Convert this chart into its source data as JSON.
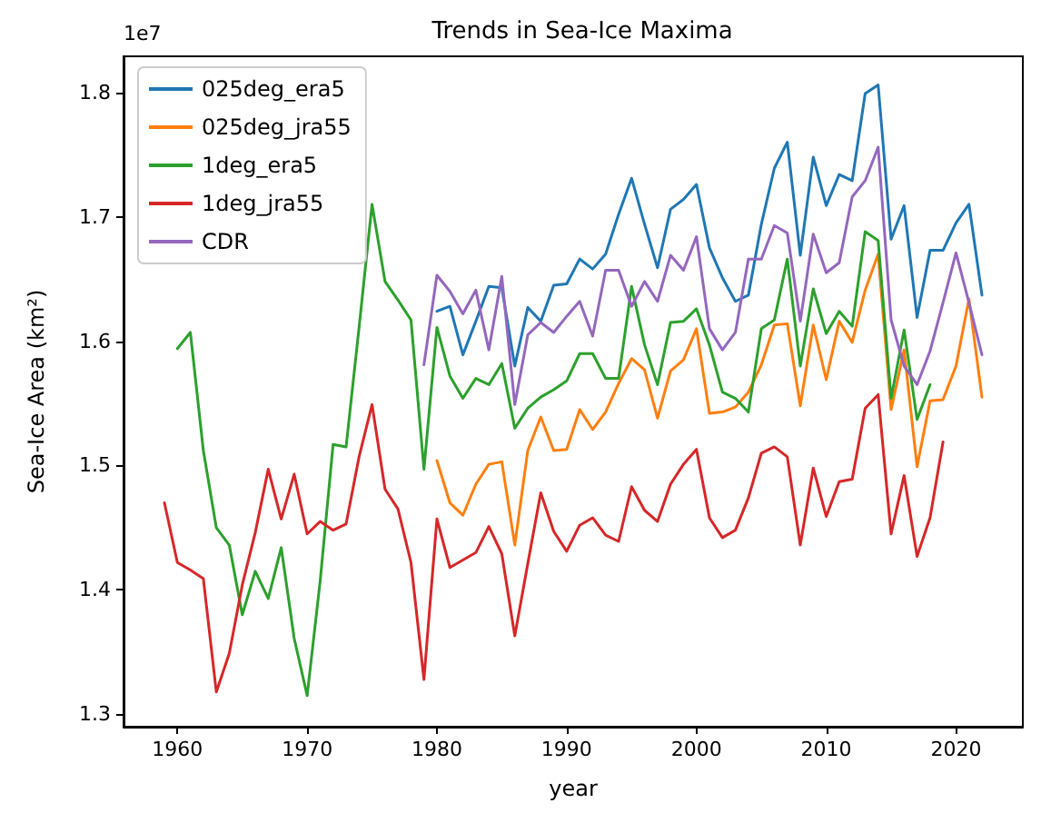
{
  "chart_data": {
    "type": "line",
    "title": "Trends in Sea-Ice Maxima",
    "xlabel": "year",
    "ylabel": "Sea-Ice Area (km²)",
    "annotations": [
      "1e7"
    ],
    "xlim": [
      1955.85,
      2025.15
    ],
    "xticks": [
      1960,
      1970,
      1980,
      1990,
      2000,
      2010,
      2020
    ],
    "ylim": [
      1.29,
      1.829
    ],
    "yticks": [
      1.3,
      1.4,
      1.5,
      1.6,
      1.7,
      1.8
    ],
    "grid": false,
    "legend": "top left",
    "marker": "none",
    "line_style": "solid",
    "series": [
      {
        "name": "025deg_era5",
        "color": "#1f77b4",
        "x": [
          1980,
          1981,
          1982,
          1983,
          1984,
          1985,
          1986,
          1987,
          1988,
          1989,
          1990,
          1991,
          1992,
          1993,
          1994,
          1995,
          1996,
          1997,
          1998,
          1999,
          2000,
          2001,
          2002,
          2003,
          2004,
          2005,
          2006,
          2007,
          2008,
          2009,
          2010,
          2011,
          2012,
          2013,
          2014,
          2015,
          2016,
          2017,
          2018,
          2019,
          2020,
          2021,
          2022
        ],
        "values": [
          1.624,
          1.628,
          1.589,
          1.616,
          1.644,
          1.643,
          1.58,
          1.627,
          1.616,
          1.645,
          1.646,
          1.666,
          1.658,
          1.67,
          1.702,
          1.731,
          1.694,
          1.659,
          1.706,
          1.714,
          1.726,
          1.675,
          1.651,
          1.632,
          1.637,
          1.694,
          1.739,
          1.76,
          1.669,
          1.748,
          1.709,
          1.734,
          1.729,
          1.799,
          1.806,
          1.682,
          1.709,
          1.619,
          1.673,
          1.673,
          1.695,
          1.71,
          1.637
        ]
      },
      {
        "name": "025deg_jra55",
        "color": "#ff7f0e",
        "x": [
          1980,
          1981,
          1982,
          1983,
          1984,
          1985,
          1986,
          1987,
          1988,
          1989,
          1990,
          1991,
          1992,
          1993,
          1994,
          1995,
          1996,
          1997,
          1998,
          1999,
          2000,
          2001,
          2002,
          2003,
          2004,
          2005,
          2006,
          2007,
          2008,
          2009,
          2010,
          2011,
          2012,
          2013,
          2014,
          2015,
          2016,
          2017,
          2018,
          2019,
          2020,
          2021,
          2022
        ],
        "values": [
          1.504,
          1.47,
          1.46,
          1.485,
          1.501,
          1.503,
          1.436,
          1.512,
          1.539,
          1.512,
          1.513,
          1.545,
          1.529,
          1.543,
          1.566,
          1.586,
          1.577,
          1.538,
          1.576,
          1.585,
          1.61,
          1.542,
          1.543,
          1.547,
          1.559,
          1.581,
          1.613,
          1.614,
          1.548,
          1.613,
          1.569,
          1.616,
          1.599,
          1.641,
          1.67,
          1.545,
          1.593,
          1.499,
          1.552,
          1.553,
          1.58,
          1.634,
          1.555
        ]
      },
      {
        "name": "1deg_era5",
        "color": "#2ca02c",
        "x": [
          1960,
          1961,
          1962,
          1963,
          1964,
          1965,
          1966,
          1967,
          1968,
          1969,
          1970,
          1971,
          1972,
          1973,
          1974,
          1975,
          1976,
          1977,
          1978,
          1979,
          1980,
          1981,
          1982,
          1983,
          1984,
          1985,
          1986,
          1987,
          1988,
          1989,
          1990,
          1991,
          1992,
          1993,
          1994,
          1995,
          1996,
          1997,
          1998,
          1999,
          2000,
          2001,
          2002,
          2003,
          2004,
          2005,
          2006,
          2007,
          2008,
          2009,
          2010,
          2011,
          2012,
          2013,
          2014,
          2015,
          2016,
          2017,
          2018
        ],
        "values": [
          1.594,
          1.607,
          1.512,
          1.45,
          1.436,
          1.38,
          1.415,
          1.393,
          1.434,
          1.361,
          1.315,
          1.407,
          1.517,
          1.515,
          1.611,
          1.71,
          1.648,
          1.633,
          1.617,
          1.497,
          1.611,
          1.572,
          1.554,
          1.57,
          1.565,
          1.582,
          1.53,
          1.546,
          1.555,
          1.561,
          1.568,
          1.59,
          1.59,
          1.57,
          1.57,
          1.644,
          1.597,
          1.565,
          1.615,
          1.616,
          1.626,
          1.597,
          1.559,
          1.554,
          1.543,
          1.61,
          1.617,
          1.666,
          1.58,
          1.642,
          1.606,
          1.624,
          1.612,
          1.688,
          1.681,
          1.554,
          1.609,
          1.537,
          1.565
        ]
      },
      {
        "name": "1deg_jra55",
        "color": "#d62728",
        "x": [
          1959,
          1960,
          1961,
          1962,
          1963,
          1964,
          1965,
          1966,
          1967,
          1968,
          1969,
          1970,
          1971,
          1972,
          1973,
          1974,
          1975,
          1976,
          1977,
          1978,
          1979,
          1980,
          1981,
          1982,
          1983,
          1984,
          1985,
          1986,
          1987,
          1988,
          1989,
          1990,
          1991,
          1992,
          1993,
          1994,
          1995,
          1996,
          1997,
          1998,
          1999,
          2000,
          2001,
          2002,
          2003,
          2004,
          2005,
          2006,
          2007,
          2008,
          2009,
          2010,
          2011,
          2012,
          2013,
          2014,
          2015,
          2016,
          2017,
          2018,
          2019
        ],
        "values": [
          1.47,
          1.422,
          1.416,
          1.409,
          1.318,
          1.349,
          1.404,
          1.446,
          1.497,
          1.457,
          1.493,
          1.445,
          1.455,
          1.448,
          1.453,
          1.507,
          1.549,
          1.481,
          1.465,
          1.422,
          1.328,
          1.457,
          1.418,
          1.424,
          1.43,
          1.451,
          1.429,
          1.363,
          1.421,
          1.478,
          1.447,
          1.431,
          1.452,
          1.458,
          1.444,
          1.439,
          1.483,
          1.464,
          1.455,
          1.485,
          1.501,
          1.513,
          1.458,
          1.442,
          1.448,
          1.474,
          1.51,
          1.515,
          1.507,
          1.436,
          1.498,
          1.459,
          1.487,
          1.489,
          1.546,
          1.557,
          1.445,
          1.492,
          1.427,
          1.458,
          1.519
        ]
      },
      {
        "name": "CDR",
        "color": "#9467bd",
        "x": [
          1979,
          1980,
          1981,
          1982,
          1983,
          1984,
          1985,
          1986,
          1987,
          1988,
          1989,
          1990,
          1991,
          1992,
          1993,
          1994,
          1995,
          1996,
          1997,
          1998,
          1999,
          2000,
          2001,
          2002,
          2003,
          2004,
          2005,
          2006,
          2007,
          2008,
          2009,
          2010,
          2011,
          2012,
          2013,
          2014,
          2015,
          2016,
          2017,
          2018,
          2019,
          2020,
          2021,
          2022
        ],
        "values": [
          1.581,
          1.653,
          1.64,
          1.622,
          1.641,
          1.593,
          1.652,
          1.549,
          1.605,
          1.615,
          1.607,
          1.62,
          1.632,
          1.604,
          1.657,
          1.657,
          1.628,
          1.648,
          1.632,
          1.669,
          1.657,
          1.684,
          1.61,
          1.593,
          1.607,
          1.666,
          1.666,
          1.693,
          1.687,
          1.616,
          1.686,
          1.655,
          1.663,
          1.716,
          1.729,
          1.756,
          1.617,
          1.58,
          1.565,
          1.592,
          1.631,
          1.671,
          1.631,
          1.589
        ]
      }
    ]
  }
}
